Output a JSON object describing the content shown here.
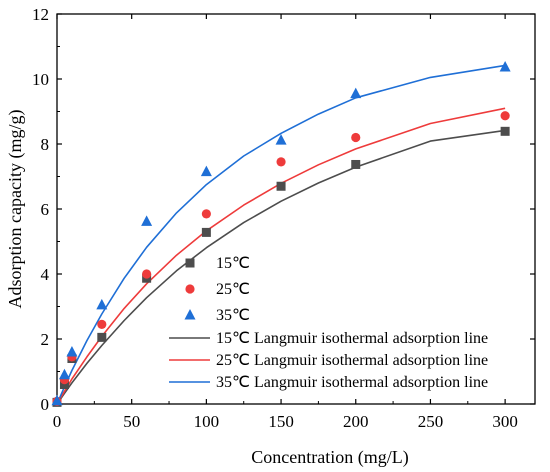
{
  "chart_data": {
    "type": "scatter",
    "xlabel": "Concentration (mg/L)",
    "ylabel": "Adsorption capacity (mg/g)",
    "xlim": [
      0,
      320
    ],
    "ylim": [
      0,
      12
    ],
    "xticks": [
      0,
      50,
      100,
      150,
      200,
      250,
      300
    ],
    "yticks": [
      0,
      2,
      4,
      6,
      8,
      10,
      12
    ],
    "grid": false,
    "legend_position": "lower-right",
    "series": [
      {
        "name": "15℃",
        "kind": "points",
        "marker": "square",
        "color": "#4d4d4d",
        "x": [
          0,
          5,
          10,
          30,
          60,
          100,
          150,
          200,
          300
        ],
        "y": [
          0.05,
          0.6,
          1.4,
          2.05,
          3.87,
          5.28,
          6.7,
          7.37,
          8.39
        ]
      },
      {
        "name": "25℃",
        "kind": "points",
        "marker": "circle",
        "color": "#ee3b3b",
        "x": [
          0,
          5,
          10,
          30,
          60,
          100,
          150,
          200,
          300
        ],
        "y": [
          0.08,
          0.75,
          1.45,
          2.45,
          4.0,
          5.85,
          7.45,
          8.2,
          8.87
        ]
      },
      {
        "name": "35℃",
        "kind": "points",
        "marker": "triangle",
        "color": "#1f6fd6",
        "x": [
          0,
          5,
          10,
          30,
          60,
          100,
          150,
          200,
          300
        ],
        "y": [
          0.1,
          0.9,
          1.6,
          3.05,
          5.62,
          7.15,
          8.12,
          9.55,
          10.37
        ]
      },
      {
        "name": "15℃ Langmuir isothermal adsorption line",
        "kind": "line",
        "color": "#4d4d4d",
        "x": [
          0,
          5,
          10,
          20,
          30,
          45,
          60,
          80,
          100,
          125,
          150,
          175,
          200,
          250,
          300
        ],
        "y": [
          0,
          0.33,
          0.65,
          1.25,
          1.8,
          2.57,
          3.27,
          4.1,
          4.81,
          5.58,
          6.24,
          6.8,
          7.29,
          8.09,
          8.42
        ]
      },
      {
        "name": "25℃ Langmuir isothermal adsorption line",
        "kind": "line",
        "color": "#ee3b3b",
        "x": [
          0,
          5,
          10,
          20,
          30,
          45,
          60,
          80,
          100,
          125,
          150,
          175,
          200,
          250,
          300
        ],
        "y": [
          0,
          0.39,
          0.77,
          1.45,
          2.08,
          2.94,
          3.7,
          4.58,
          5.33,
          6.12,
          6.79,
          7.36,
          7.85,
          8.63,
          9.1
        ]
      },
      {
        "name": "35℃ Langmuir  isothermal adsorption line",
        "kind": "line",
        "color": "#1f6fd6",
        "x": [
          0,
          5,
          10,
          20,
          30,
          45,
          60,
          80,
          100,
          125,
          150,
          175,
          200,
          250,
          300
        ],
        "y": [
          0,
          0.53,
          1.03,
          1.95,
          2.77,
          3.87,
          4.82,
          5.88,
          6.75,
          7.63,
          8.33,
          8.92,
          9.42,
          10.05,
          10.42
        ]
      }
    ]
  }
}
